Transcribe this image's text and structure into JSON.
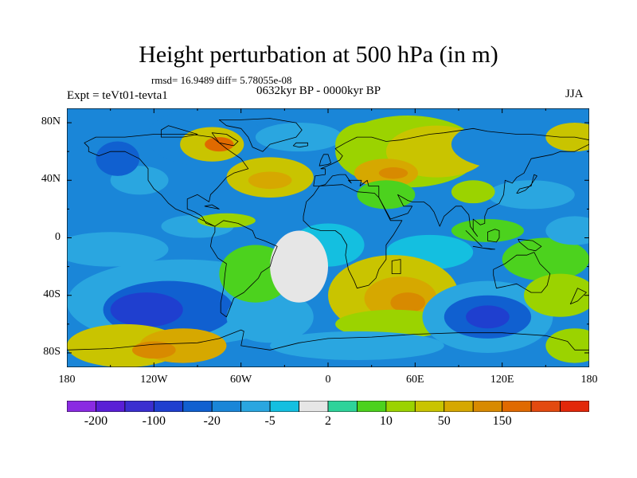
{
  "title": "Height perturbation at 500 hPa (in m)",
  "stats": "rmsd= 16.9489 diff= 5.78055e-08",
  "period": "0632kyr BP - 0000kyr BP",
  "experiment": "Expt = teVt01-tevta1",
  "season": "JJA",
  "map": {
    "type": "filled-contour-map",
    "region": "global",
    "lon_range": [
      -180,
      180
    ],
    "lat_range": [
      -90,
      90
    ],
    "lat_ticks": [
      {
        "value": 80,
        "label": "80N"
      },
      {
        "value": 40,
        "label": "40N"
      },
      {
        "value": 0,
        "label": "0"
      },
      {
        "value": -40,
        "label": "40S"
      },
      {
        "value": -80,
        "label": "80S"
      }
    ],
    "lon_ticks": [
      {
        "value": -180,
        "label": "180"
      },
      {
        "value": -120,
        "label": "120W"
      },
      {
        "value": -60,
        "label": "60W"
      },
      {
        "value": 0,
        "label": "0"
      },
      {
        "value": 60,
        "label": "60E"
      },
      {
        "value": 120,
        "label": "120E"
      },
      {
        "value": 180,
        "label": "180"
      }
    ]
  },
  "colorbar": {
    "colors": [
      "#8a2be2",
      "#5a1fd6",
      "#3b2fd0",
      "#1f3fcf",
      "#1060d0",
      "#1a86d8",
      "#2aa6e0",
      "#14bfe0",
      "#e6e6e6",
      "#2ed39a",
      "#4cd21e",
      "#9bd300",
      "#c9c400",
      "#d6a800",
      "#d88a00",
      "#e06a00",
      "#e34a10",
      "#e2280a"
    ],
    "labels": [
      {
        "index": 1,
        "text": "-200"
      },
      {
        "index": 3,
        "text": "-100"
      },
      {
        "index": 5,
        "text": "-20"
      },
      {
        "index": 7,
        "text": "-5"
      },
      {
        "index": 9,
        "text": "2"
      },
      {
        "index": 11,
        "text": "10"
      },
      {
        "index": 13,
        "text": "50"
      },
      {
        "index": 15,
        "text": "150"
      }
    ]
  },
  "field_blobs": [
    {
      "lon": -150,
      "lat": 75,
      "rx": 40,
      "ry": 15,
      "level": 5
    },
    {
      "lon": -85,
      "lat": 70,
      "rx": 40,
      "ry": 20,
      "level": 5
    },
    {
      "lon": -80,
      "lat": 65,
      "rx": 22,
      "ry": 12,
      "level": 12
    },
    {
      "lon": -75,
      "lat": 65,
      "rx": 10,
      "ry": 5,
      "level": 15
    },
    {
      "lon": -130,
      "lat": 40,
      "rx": 20,
      "ry": 10,
      "level": 6
    },
    {
      "lon": -145,
      "lat": 55,
      "rx": 15,
      "ry": 12,
      "level": 4
    },
    {
      "lon": -40,
      "lat": 42,
      "rx": 30,
      "ry": 14,
      "level": 12
    },
    {
      "lon": -40,
      "lat": 40,
      "rx": 15,
      "ry": 6,
      "level": 13
    },
    {
      "lon": -20,
      "lat": 70,
      "rx": 30,
      "ry": 10,
      "level": 6
    },
    {
      "lon": 10,
      "lat": 50,
      "rx": 15,
      "ry": 15,
      "level": 5
    },
    {
      "lon": 25,
      "lat": 65,
      "rx": 20,
      "ry": 15,
      "level": 11
    },
    {
      "lon": 55,
      "lat": 60,
      "rx": 50,
      "ry": 25,
      "level": 11
    },
    {
      "lon": 75,
      "lat": 60,
      "rx": 35,
      "ry": 18,
      "level": 12
    },
    {
      "lon": 40,
      "lat": 45,
      "rx": 22,
      "ry": 10,
      "level": 13
    },
    {
      "lon": 45,
      "lat": 45,
      "rx": 10,
      "ry": 4,
      "level": 14
    },
    {
      "lon": 40,
      "lat": 30,
      "rx": 20,
      "ry": 10,
      "level": 10
    },
    {
      "lon": 130,
      "lat": 65,
      "rx": 45,
      "ry": 18,
      "level": 5
    },
    {
      "lon": 160,
      "lat": 45,
      "rx": 30,
      "ry": 15,
      "level": 5
    },
    {
      "lon": 140,
      "lat": 30,
      "rx": 30,
      "ry": 10,
      "level": 6
    },
    {
      "lon": 100,
      "lat": 32,
      "rx": 15,
      "ry": 8,
      "level": 11
    },
    {
      "lon": 170,
      "lat": 70,
      "rx": 20,
      "ry": 10,
      "level": 12
    },
    {
      "lon": -150,
      "lat": -8,
      "rx": 40,
      "ry": 12,
      "level": 6
    },
    {
      "lon": -90,
      "lat": 8,
      "rx": 25,
      "ry": 8,
      "level": 6
    },
    {
      "lon": -70,
      "lat": 12,
      "rx": 20,
      "ry": 5,
      "level": 11
    },
    {
      "lon": 0,
      "lat": -5,
      "rx": 25,
      "ry": 15,
      "level": 7
    },
    {
      "lon": 70,
      "lat": -10,
      "rx": 30,
      "ry": 12,
      "level": 7
    },
    {
      "lon": 110,
      "lat": 5,
      "rx": 25,
      "ry": 8,
      "level": 10
    },
    {
      "lon": 150,
      "lat": -15,
      "rx": 30,
      "ry": 15,
      "level": 10
    },
    {
      "lon": 170,
      "lat": 5,
      "rx": 20,
      "ry": 10,
      "level": 6
    },
    {
      "lon": -100,
      "lat": -45,
      "rx": 80,
      "ry": 30,
      "level": 6
    },
    {
      "lon": -110,
      "lat": -50,
      "rx": 45,
      "ry": 20,
      "level": 4
    },
    {
      "lon": -125,
      "lat": -50,
      "rx": 25,
      "ry": 12,
      "level": 3
    },
    {
      "lon": -40,
      "lat": -55,
      "rx": 30,
      "ry": 18,
      "level": 6
    },
    {
      "lon": -50,
      "lat": -25,
      "rx": 25,
      "ry": 20,
      "level": 10
    },
    {
      "lon": -140,
      "lat": -75,
      "rx": 40,
      "ry": 15,
      "level": 12
    },
    {
      "lon": -100,
      "lat": -75,
      "rx": 30,
      "ry": 12,
      "level": 13
    },
    {
      "lon": -120,
      "lat": -78,
      "rx": 15,
      "ry": 6,
      "level": 14
    },
    {
      "lon": 45,
      "lat": -40,
      "rx": 45,
      "ry": 28,
      "level": 12
    },
    {
      "lon": 50,
      "lat": -42,
      "rx": 25,
      "ry": 15,
      "level": 13
    },
    {
      "lon": 55,
      "lat": -45,
      "rx": 12,
      "ry": 7,
      "level": 14
    },
    {
      "lon": 45,
      "lat": -60,
      "rx": 40,
      "ry": 10,
      "level": 11
    },
    {
      "lon": 110,
      "lat": -55,
      "rx": 45,
      "ry": 25,
      "level": 6
    },
    {
      "lon": 110,
      "lat": -55,
      "rx": 30,
      "ry": 15,
      "level": 4
    },
    {
      "lon": 110,
      "lat": -55,
      "rx": 15,
      "ry": 8,
      "level": 3
    },
    {
      "lon": 160,
      "lat": -40,
      "rx": 25,
      "ry": 15,
      "level": 11
    },
    {
      "lon": 170,
      "lat": -75,
      "rx": 20,
      "ry": 12,
      "level": 11
    },
    {
      "lon": 20,
      "lat": -75,
      "rx": 60,
      "ry": 10,
      "level": 6
    },
    {
      "lon": -20,
      "lat": -20,
      "rx": 20,
      "ry": 25,
      "level": 8
    }
  ],
  "land": [
    [
      [
        -168,
        66
      ],
      [
        -160,
        70
      ],
      [
        -140,
        70
      ],
      [
        -120,
        72
      ],
      [
        -95,
        72
      ],
      [
        -80,
        70
      ],
      [
        -70,
        62
      ],
      [
        -60,
        55
      ],
      [
        -55,
        48
      ],
      [
        -65,
        45
      ],
      [
        -70,
        42
      ],
      [
        -76,
        35
      ],
      [
        -81,
        30
      ],
      [
        -82,
        25
      ],
      [
        -90,
        30
      ],
      [
        -97,
        27
      ],
      [
        -97,
        20
      ],
      [
        -92,
        18
      ],
      [
        -87,
        15
      ],
      [
        -84,
        10
      ],
      [
        -78,
        8
      ],
      [
        -86,
        12
      ],
      [
        -95,
        16
      ],
      [
        -105,
        20
      ],
      [
        -110,
        24
      ],
      [
        -115,
        30
      ],
      [
        -120,
        34
      ],
      [
        -124,
        40
      ],
      [
        -124,
        48
      ],
      [
        -130,
        55
      ],
      [
        -140,
        60
      ],
      [
        -150,
        60
      ],
      [
        -158,
        57
      ],
      [
        -165,
        60
      ],
      [
        -165,
        63
      ]
    ],
    [
      [
        -75,
        82
      ],
      [
        -60,
        82
      ],
      [
        -40,
        83
      ],
      [
        -22,
        80
      ],
      [
        -18,
        75
      ],
      [
        -22,
        70
      ],
      [
        -40,
        65
      ],
      [
        -45,
        60
      ],
      [
        -52,
        63
      ],
      [
        -55,
        70
      ],
      [
        -60,
        76
      ],
      [
        -70,
        78
      ]
    ],
    [
      [
        -78,
        8
      ],
      [
        -72,
        12
      ],
      [
        -62,
        10
      ],
      [
        -52,
        5
      ],
      [
        -50,
        0
      ],
      [
        -44,
        -2
      ],
      [
        -35,
        -6
      ],
      [
        -38,
        -13
      ],
      [
        -40,
        -20
      ],
      [
        -46,
        -24
      ],
      [
        -48,
        -28
      ],
      [
        -55,
        -35
      ],
      [
        -58,
        -38
      ],
      [
        -65,
        -42
      ],
      [
        -68,
        -50
      ],
      [
        -70,
        -55
      ],
      [
        -74,
        -52
      ],
      [
        -74,
        -45
      ],
      [
        -72,
        -35
      ],
      [
        -71,
        -25
      ],
      [
        -70,
        -18
      ],
      [
        -76,
        -14
      ],
      [
        -81,
        -6
      ],
      [
        -80,
        0
      ],
      [
        -78,
        4
      ]
    ],
    [
      [
        -17,
        15
      ],
      [
        -15,
        25
      ],
      [
        -10,
        30
      ],
      [
        -6,
        36
      ],
      [
        10,
        37
      ],
      [
        20,
        32
      ],
      [
        32,
        31
      ],
      [
        35,
        28
      ],
      [
        43,
        12
      ],
      [
        51,
        12
      ],
      [
        45,
        2
      ],
      [
        40,
        -5
      ],
      [
        40,
        -15
      ],
      [
        35,
        -22
      ],
      [
        33,
        -28
      ],
      [
        28,
        -33
      ],
      [
        20,
        -35
      ],
      [
        18,
        -30
      ],
      [
        14,
        -22
      ],
      [
        12,
        -12
      ],
      [
        13,
        -5
      ],
      [
        9,
        2
      ],
      [
        5,
        5
      ],
      [
        -5,
        5
      ],
      [
        -12,
        7
      ],
      [
        -17,
        12
      ]
    ],
    [
      [
        -10,
        36
      ],
      [
        -9,
        43
      ],
      [
        -2,
        44
      ],
      [
        -2,
        48
      ],
      [
        -5,
        48
      ],
      [
        2,
        51
      ],
      [
        8,
        54
      ],
      [
        10,
        57
      ],
      [
        5,
        62
      ],
      [
        12,
        66
      ],
      [
        20,
        70
      ],
      [
        30,
        70
      ],
      [
        40,
        67
      ],
      [
        50,
        68
      ],
      [
        60,
        70
      ],
      [
        70,
        72
      ],
      [
        80,
        73
      ],
      [
        100,
        76
      ],
      [
        110,
        74
      ],
      [
        130,
        72
      ],
      [
        140,
        72
      ],
      [
        160,
        70
      ],
      [
        170,
        70
      ],
      [
        180,
        68
      ],
      [
        180,
        65
      ],
      [
        170,
        60
      ],
      [
        160,
        60
      ],
      [
        155,
        58
      ],
      [
        140,
        55
      ],
      [
        135,
        45
      ],
      [
        130,
        42
      ],
      [
        127,
        38
      ],
      [
        122,
        40
      ],
      [
        121,
        30
      ],
      [
        118,
        24
      ],
      [
        110,
        20
      ],
      [
        108,
        15
      ],
      [
        108,
        10
      ],
      [
        105,
        9
      ],
      [
        100,
        13
      ],
      [
        100,
        5
      ],
      [
        103,
        1
      ],
      [
        98,
        8
      ],
      [
        97,
        16
      ],
      [
        92,
        22
      ],
      [
        88,
        22
      ],
      [
        80,
        15
      ],
      [
        77,
        8
      ],
      [
        73,
        18
      ],
      [
        70,
        22
      ],
      [
        66,
        25
      ],
      [
        58,
        25
      ],
      [
        55,
        26
      ],
      [
        48,
        30
      ],
      [
        52,
        22
      ],
      [
        58,
        22
      ],
      [
        55,
        17
      ],
      [
        43,
        13
      ],
      [
        35,
        28
      ],
      [
        35,
        36
      ],
      [
        28,
        36
      ],
      [
        27,
        40
      ],
      [
        22,
        36
      ],
      [
        23,
        40
      ],
      [
        14,
        40
      ],
      [
        16,
        38
      ],
      [
        12,
        44
      ],
      [
        8,
        44
      ],
      [
        3,
        43
      ],
      [
        -2,
        37
      ],
      [
        -6,
        36
      ]
    ],
    [
      [
        114,
        -22
      ],
      [
        122,
        -18
      ],
      [
        130,
        -12
      ],
      [
        137,
        -12
      ],
      [
        142,
        -10
      ],
      [
        146,
        -18
      ],
      [
        153,
        -25
      ],
      [
        151,
        -33
      ],
      [
        147,
        -38
      ],
      [
        140,
        -38
      ],
      [
        135,
        -35
      ],
      [
        130,
        -32
      ],
      [
        116,
        -35
      ],
      [
        114,
        -26
      ]
    ],
    [
      [
        -180,
        -78
      ],
      [
        -150,
        -77
      ],
      [
        -120,
        -74
      ],
      [
        -90,
        -73
      ],
      [
        -75,
        -70
      ],
      [
        -60,
        -64
      ],
      [
        -58,
        -65
      ],
      [
        -60,
        -75
      ],
      [
        -40,
        -78
      ],
      [
        -20,
        -73
      ],
      [
        0,
        -70
      ],
      [
        30,
        -69
      ],
      [
        60,
        -67
      ],
      [
        90,
        -66
      ],
      [
        120,
        -66
      ],
      [
        150,
        -68
      ],
      [
        165,
        -72
      ],
      [
        170,
        -78
      ],
      [
        180,
        -78
      ],
      [
        180,
        -90
      ],
      [
        -180,
        -90
      ]
    ],
    [
      [
        -6,
        50
      ],
      [
        -5,
        54
      ],
      [
        -3,
        58
      ],
      [
        0,
        58
      ],
      [
        2,
        52
      ],
      [
        0,
        51
      ]
    ],
    [
      [
        130,
        31
      ],
      [
        132,
        34
      ],
      [
        136,
        35
      ],
      [
        140,
        36
      ],
      [
        141,
        40
      ],
      [
        142,
        44
      ],
      [
        144,
        43
      ],
      [
        140,
        37
      ],
      [
        136,
        33
      ],
      [
        131,
        31
      ]
    ],
    [
      [
        50,
        -15
      ],
      [
        50,
        -25
      ],
      [
        44,
        -25
      ],
      [
        44,
        -16
      ]
    ],
    [
      [
        95,
        5
      ],
      [
        105,
        -5
      ],
      [
        106,
        -6
      ],
      [
        100,
        0
      ],
      [
        97,
        3
      ]
    ],
    [
      [
        110,
        0
      ],
      [
        110,
        4
      ],
      [
        115,
        6
      ],
      [
        118,
        5
      ],
      [
        118,
        0
      ],
      [
        116,
        -3
      ],
      [
        110,
        -2
      ]
    ],
    [
      [
        131,
        -1
      ],
      [
        141,
        -2
      ],
      [
        147,
        -6
      ],
      [
        143,
        -9
      ],
      [
        138,
        -8
      ],
      [
        132,
        -3
      ]
    ],
    [
      [
        172,
        -35
      ],
      [
        178,
        -38
      ],
      [
        172,
        -44
      ],
      [
        167,
        -46
      ],
      [
        168,
        -44
      ]
    ],
    [
      [
        -24,
        64
      ],
      [
        -22,
        66
      ],
      [
        -14,
        66
      ],
      [
        -14,
        64
      ],
      [
        -20,
        63
      ]
    ],
    [
      [
        -85,
        22
      ],
      [
        -80,
        23
      ],
      [
        -75,
        20
      ],
      [
        -80,
        21
      ]
    ],
    [
      [
        -80,
        73
      ],
      [
        -70,
        72
      ],
      [
        -62,
        67
      ],
      [
        -65,
        64
      ],
      [
        -75,
        66
      ]
    ],
    [
      [
        -115,
        70
      ],
      [
        -100,
        70
      ],
      [
        -90,
        72
      ],
      [
        -110,
        78
      ],
      [
        -115,
        75
      ]
    ],
    [
      [
        100,
        -6
      ],
      [
        112,
        -8
      ],
      [
        115,
        -8
      ],
      [
        106,
        -7
      ]
    ]
  ]
}
